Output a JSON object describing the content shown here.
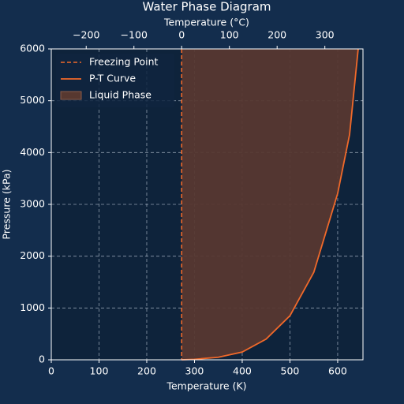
{
  "chart_data": {
    "type": "line",
    "title": "Water Phase Diagram",
    "xlabel": "Temperature (K)",
    "ylabel": "Pressure (kPa)",
    "x2label": "Temperature (°C)",
    "xlim": [
      0,
      653
    ],
    "ylim": [
      0,
      6000
    ],
    "xticks": [
      0,
      100,
      200,
      300,
      400,
      500,
      600
    ],
    "yticks": [
      0,
      1000,
      2000,
      3000,
      4000,
      5000,
      6000
    ],
    "x2lim": [
      -273.15,
      379.85
    ],
    "x2ticks": [
      {
        "value": -200,
        "label": "−200"
      },
      {
        "value": -100,
        "label": "−100"
      },
      0,
      100,
      200,
      300
    ],
    "grid": true,
    "freezing_point": {
      "name": "Freezing Point",
      "x": 273.15,
      "color": "#f0692a"
    },
    "series": [
      {
        "name": "P-T Curve",
        "color": "#f0692a",
        "x": [
          273.15,
          300,
          350,
          400,
          450,
          500,
          550,
          600,
          625,
          643
        ],
        "values": [
          0,
          10,
          50,
          150,
          400,
          850,
          1690,
          3210,
          4350,
          6000
        ]
      }
    ],
    "fill": {
      "name": "Liquid Phase",
      "color": "#573830"
    },
    "legend": "upper left"
  }
}
